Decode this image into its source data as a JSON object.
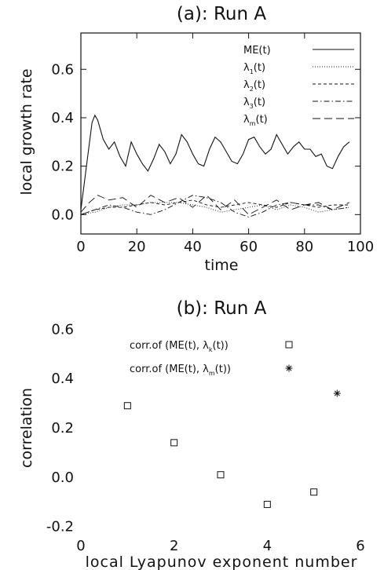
{
  "chart_data": [
    {
      "type": "line",
      "title": "(a): Run A",
      "xlabel": "time",
      "ylabel": "local growth rate",
      "xlim": [
        0,
        100
      ],
      "ylim": [
        -0.08,
        0.75
      ],
      "xticks": [
        "0",
        "20",
        "40",
        "60",
        "80",
        "100"
      ],
      "yticks": [
        "0.0",
        "0.2",
        "0.4",
        "0.6"
      ],
      "legend_position": "top-right",
      "series": [
        {
          "name": "ME(t)",
          "style": "solid",
          "x": [
            0,
            2,
            4,
            5,
            6,
            8,
            10,
            12,
            14,
            16,
            18,
            20,
            22,
            24,
            26,
            28,
            30,
            32,
            34,
            36,
            38,
            40,
            42,
            44,
            46,
            48,
            50,
            52,
            54,
            56,
            58,
            60,
            62,
            64,
            66,
            68,
            70,
            72,
            74,
            76,
            78,
            80,
            82,
            84,
            86,
            88,
            90,
            92,
            94,
            96
          ],
          "y": [
            0.02,
            0.2,
            0.38,
            0.41,
            0.39,
            0.31,
            0.27,
            0.3,
            0.24,
            0.2,
            0.3,
            0.25,
            0.21,
            0.18,
            0.23,
            0.29,
            0.26,
            0.21,
            0.25,
            0.33,
            0.3,
            0.25,
            0.21,
            0.2,
            0.27,
            0.32,
            0.3,
            0.26,
            0.22,
            0.21,
            0.25,
            0.31,
            0.32,
            0.28,
            0.25,
            0.27,
            0.33,
            0.29,
            0.25,
            0.28,
            0.3,
            0.27,
            0.27,
            0.24,
            0.25,
            0.2,
            0.19,
            0.24,
            0.28,
            0.3
          ]
        },
        {
          "name": "λ1(t)",
          "style": "dotted",
          "x": [
            0,
            5,
            10,
            15,
            20,
            25,
            30,
            35,
            40,
            45,
            50,
            55,
            60,
            65,
            70,
            75,
            80,
            85,
            90,
            96
          ],
          "y": [
            0.0,
            0.01,
            0.03,
            0.04,
            0.04,
            0.05,
            0.05,
            0.05,
            0.04,
            0.03,
            0.01,
            0.02,
            0.03,
            0.04,
            0.02,
            0.04,
            0.03,
            0.01,
            0.02,
            0.03
          ]
        },
        {
          "name": "λ2(t)",
          "style": "short-dashed",
          "x": [
            0,
            5,
            10,
            15,
            20,
            25,
            30,
            35,
            40,
            45,
            50,
            55,
            60,
            65,
            70,
            75,
            80,
            85,
            90,
            96
          ],
          "y": [
            0.0,
            0.02,
            0.03,
            0.03,
            0.04,
            0.05,
            0.04,
            0.05,
            0.06,
            0.04,
            0.03,
            0.04,
            0.05,
            0.04,
            0.03,
            0.05,
            0.04,
            0.03,
            0.04,
            0.04
          ]
        },
        {
          "name": "λ3(t)",
          "style": "dash-dot",
          "x": [
            0,
            5,
            10,
            15,
            20,
            25,
            30,
            35,
            40,
            45,
            50,
            55,
            60,
            65,
            70,
            75,
            80,
            85,
            90,
            96
          ],
          "y": [
            0.0,
            0.02,
            0.04,
            0.03,
            0.01,
            0.0,
            0.02,
            0.05,
            0.08,
            0.07,
            0.05,
            0.01,
            -0.01,
            0.01,
            0.04,
            0.05,
            0.04,
            0.04,
            0.02,
            0.03
          ]
        },
        {
          "name": "λm(t)",
          "style": "long-dashed",
          "x": [
            0,
            3,
            6,
            10,
            15,
            20,
            25,
            30,
            35,
            40,
            45,
            50,
            55,
            60,
            65,
            70,
            75,
            80,
            85,
            90,
            96
          ],
          "y": [
            0.01,
            0.05,
            0.08,
            0.06,
            0.07,
            0.03,
            0.08,
            0.05,
            0.07,
            0.03,
            0.08,
            0.02,
            0.06,
            0.0,
            0.03,
            0.06,
            0.02,
            0.04,
            0.05,
            0.02,
            0.05
          ]
        }
      ]
    },
    {
      "type": "scatter",
      "title": "(b): Run A",
      "xlabel": "local Lyapunov exponent number",
      "ylabel": "correlation",
      "xlim": [
        0,
        6
      ],
      "ylim": [
        -0.22,
        0.62
      ],
      "xticks": [
        "0",
        "2",
        "4",
        "6"
      ],
      "yticks": [
        "-0.2",
        "0.0",
        "0.2",
        "0.4",
        "0.6"
      ],
      "legend_position": "top-right",
      "series": [
        {
          "name": "corr.of (ME(t), λk(t))",
          "marker": "square",
          "x": [
            1,
            2,
            3,
            4,
            5
          ],
          "y": [
            0.29,
            0.14,
            0.01,
            -0.11,
            -0.06
          ]
        },
        {
          "name": "corr.of (ME(t), λm(t))",
          "marker": "asterisk",
          "x": [
            5.5
          ],
          "y": [
            0.34
          ]
        }
      ]
    }
  ],
  "legend_a": [
    {
      "base": "ME(t)",
      "sub": "",
      "tail": ""
    },
    {
      "base": "λ",
      "sub": "1",
      "tail": "(t)"
    },
    {
      "base": "λ",
      "sub": "2",
      "tail": "(t)"
    },
    {
      "base": "λ",
      "sub": "3",
      "tail": "(t)"
    },
    {
      "base": "λ",
      "sub": "m",
      "tail": "(t)"
    }
  ],
  "legend_b": [
    {
      "pre": "corr.of (ME(t), λ",
      "sub": "k",
      "post": "(t))"
    },
    {
      "pre": "corr.of (ME(t), λ",
      "sub": "m",
      "post": "(t))"
    }
  ]
}
